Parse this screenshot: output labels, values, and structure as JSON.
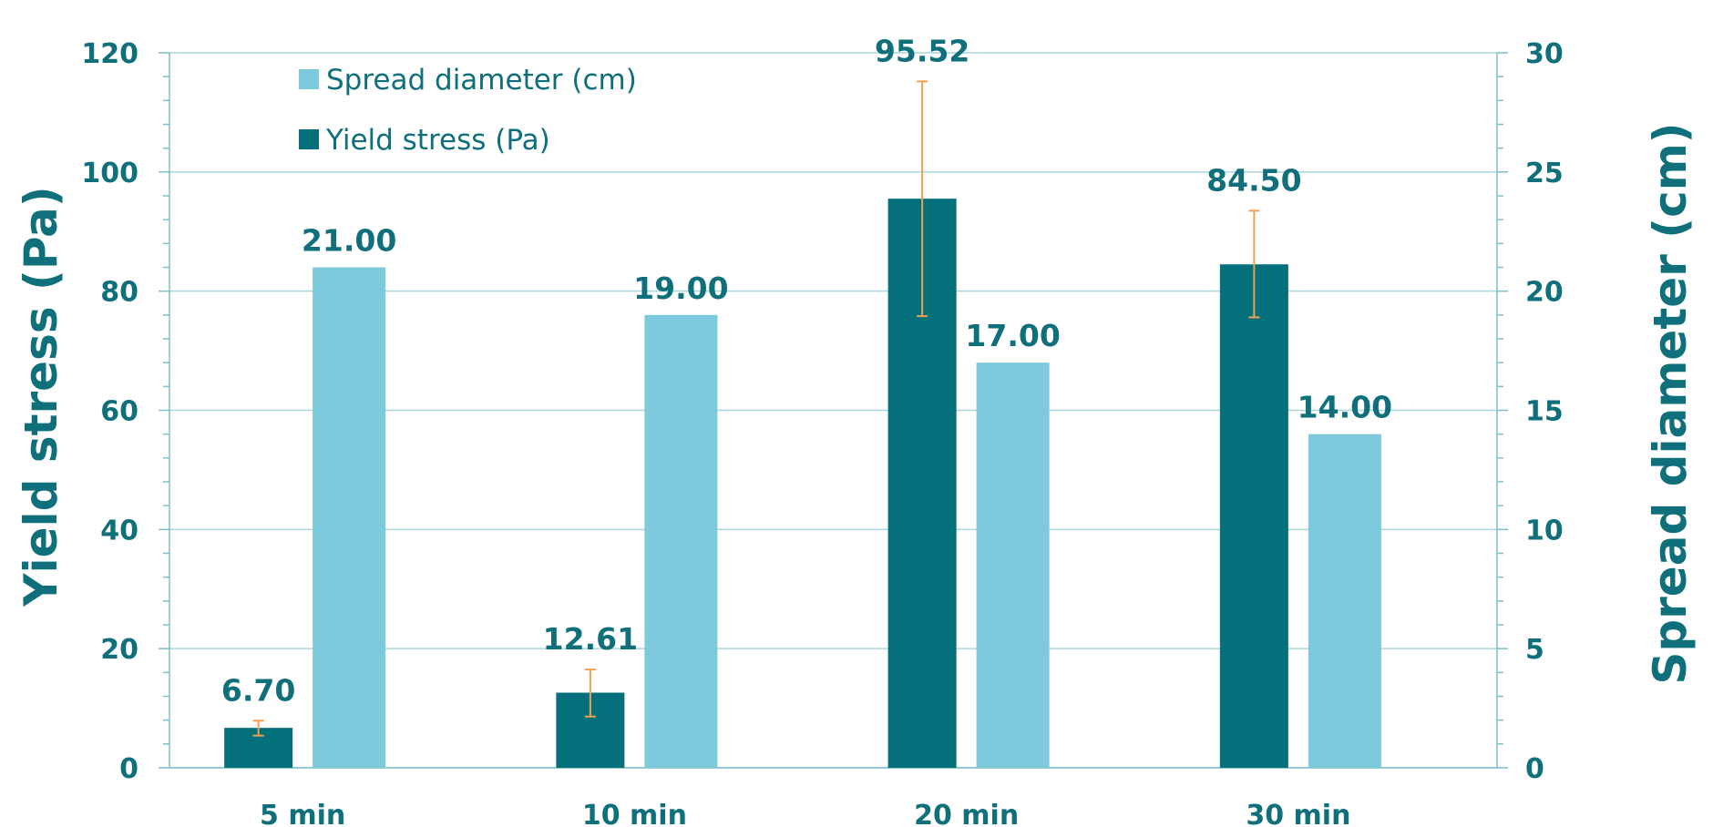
{
  "chart_data": {
    "type": "bar",
    "categories": [
      "5 min",
      "10 min",
      "20 min",
      "30 min"
    ],
    "series": [
      {
        "name": "Yield stress (Pa)",
        "axis": "left",
        "color": "#04707b",
        "values": [
          6.7,
          12.61,
          95.52,
          84.5
        ],
        "labels": [
          "6.70",
          "12.61",
          "95.52",
          "84.50"
        ],
        "error_low": [
          5.4,
          8.6,
          75.8,
          75.6
        ],
        "error_high": [
          7.9,
          16.5,
          115.2,
          93.5
        ]
      },
      {
        "name": "Spread diameter (cm)",
        "axis": "right",
        "color": "#7ccadb",
        "values": [
          21.0,
          19.0,
          17.0,
          14.0
        ],
        "labels": [
          "21.00",
          "19.00",
          "17.00",
          "14.00"
        ]
      }
    ],
    "ylabel": "Yield stress (Pa)",
    "y2label": "Spread diameter (cm)",
    "ylim": [
      0,
      120
    ],
    "y2lim": [
      0,
      30
    ],
    "yticks": [
      "0",
      "20",
      "40",
      "60",
      "80",
      "100",
      "120"
    ],
    "y2ticks": [
      "0",
      "5",
      "10",
      "15",
      "20",
      "25",
      "30"
    ],
    "grid": true,
    "legend_position": "top-left",
    "legend": [
      {
        "name": "Spread diameter (cm)",
        "color": "#7ccadb"
      },
      {
        "name": "Yield stress (Pa)",
        "color": "#04707b"
      }
    ],
    "error_bar_color": "#f0a050"
  }
}
